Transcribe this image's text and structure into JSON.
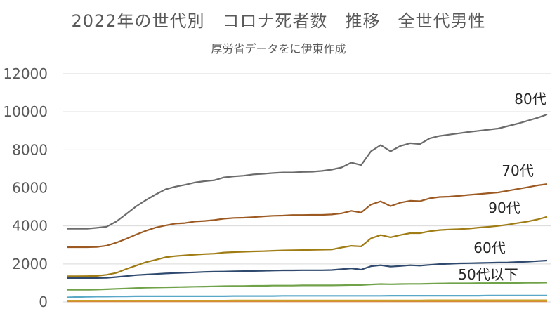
{
  "chart_data": {
    "type": "line",
    "title": "2022年の世代別　コロナ死者数　推移　全世代男性",
    "subtitle": "厚労省データをに伊東作成",
    "xlabel": "",
    "ylabel": "",
    "ylim": [
      0,
      12000
    ],
    "yticks": [
      "0",
      "2000",
      "4000",
      "6000",
      "8000",
      "10000",
      "12000"
    ],
    "grid": true,
    "x_count": 50,
    "colors": {
      "80代": "#6b6b6b",
      "70代": "#9c5a22",
      "90代": "#a07c14",
      "60代": "#2f4a6e",
      "50代以下": "#70a24a",
      "series_cyan": "#5aa8c8",
      "series_gold": "#c9a227",
      "series_orange": "#d9883a"
    },
    "series": [
      {
        "name": "80代",
        "values": [
          3850,
          3850,
          3850,
          3900,
          3960,
          4230,
          4620,
          5020,
          5350,
          5650,
          5920,
          6060,
          6160,
          6280,
          6350,
          6400,
          6550,
          6600,
          6640,
          6710,
          6740,
          6780,
          6810,
          6810,
          6840,
          6850,
          6890,
          6960,
          7070,
          7330,
          7200,
          7920,
          8250,
          7920,
          8200,
          8350,
          8300,
          8600,
          8730,
          8800,
          8870,
          8940,
          9000,
          9060,
          9120,
          9250,
          9380,
          9530,
          9680,
          9860
        ]
      },
      {
        "name": "70代",
        "values": [
          2880,
          2880,
          2880,
          2890,
          2960,
          3120,
          3320,
          3540,
          3740,
          3910,
          4020,
          4120,
          4150,
          4230,
          4260,
          4310,
          4380,
          4420,
          4430,
          4460,
          4500,
          4530,
          4540,
          4570,
          4570,
          4580,
          4580,
          4600,
          4660,
          4790,
          4700,
          5120,
          5290,
          5040,
          5220,
          5320,
          5300,
          5450,
          5520,
          5540,
          5580,
          5630,
          5670,
          5720,
          5760,
          5850,
          5940,
          6030,
          6130,
          6200
        ]
      },
      {
        "name": "90代",
        "values": [
          1350,
          1350,
          1360,
          1370,
          1430,
          1530,
          1730,
          1910,
          2090,
          2210,
          2350,
          2410,
          2450,
          2490,
          2520,
          2540,
          2600,
          2620,
          2640,
          2660,
          2670,
          2690,
          2710,
          2720,
          2730,
          2740,
          2750,
          2760,
          2860,
          2950,
          2920,
          3340,
          3520,
          3400,
          3520,
          3620,
          3620,
          3720,
          3780,
          3810,
          3830,
          3860,
          3910,
          3950,
          4000,
          4070,
          4150,
          4230,
          4340,
          4480
        ]
      },
      {
        "name": "60代",
        "values": [
          1260,
          1260,
          1260,
          1260,
          1270,
          1310,
          1360,
          1410,
          1440,
          1470,
          1500,
          1520,
          1540,
          1560,
          1580,
          1590,
          1600,
          1610,
          1620,
          1630,
          1640,
          1650,
          1660,
          1660,
          1670,
          1670,
          1670,
          1680,
          1720,
          1770,
          1700,
          1880,
          1930,
          1860,
          1890,
          1930,
          1910,
          1950,
          1990,
          2010,
          2030,
          2040,
          2050,
          2060,
          2070,
          2080,
          2100,
          2120,
          2150,
          2180
        ]
      },
      {
        "name": "50代以下",
        "values": [
          640,
          640,
          640,
          650,
          670,
          690,
          710,
          730,
          750,
          760,
          770,
          780,
          790,
          800,
          810,
          820,
          830,
          840,
          840,
          850,
          850,
          860,
          860,
          860,
          870,
          870,
          870,
          870,
          880,
          890,
          890,
          920,
          940,
          930,
          940,
          950,
          950,
          960,
          970,
          980,
          980,
          980,
          990,
          990,
          1000,
          1000,
          1000,
          1010,
          1010,
          1020
        ]
      },
      {
        "values": [
          240,
          260,
          270,
          280,
          280,
          290,
          290,
          300,
          300,
          300,
          300,
          300,
          300,
          300,
          300,
          300,
          300,
          310,
          310,
          310,
          310,
          310,
          320,
          320,
          320,
          320,
          320,
          320,
          320,
          320,
          320,
          320,
          320,
          330,
          330,
          330,
          330,
          330,
          330,
          330,
          330,
          330,
          330,
          340,
          340,
          340,
          340,
          340,
          340,
          340
        ]
      },
      {
        "values": [
          70,
          70,
          70,
          70,
          70,
          70,
          70,
          70,
          70,
          70,
          70,
          70,
          70,
          70,
          70,
          70,
          70,
          80,
          80,
          80,
          80,
          80,
          80,
          80,
          80,
          80,
          80,
          80,
          80,
          80,
          80,
          80,
          80,
          80,
          80,
          80,
          80,
          90,
          90,
          90,
          90,
          90,
          90,
          90,
          90,
          90,
          90,
          90,
          90,
          90
        ]
      },
      {
        "values": [
          30,
          30,
          30,
          30,
          30,
          30,
          30,
          30,
          30,
          30,
          30,
          30,
          30,
          30,
          30,
          30,
          30,
          30,
          30,
          30,
          30,
          30,
          30,
          30,
          30,
          30,
          30,
          30,
          30,
          30,
          30,
          30,
          30,
          30,
          30,
          30,
          30,
          30,
          30,
          30,
          30,
          30,
          30,
          30,
          30,
          30,
          30,
          30,
          30,
          30
        ]
      }
    ]
  }
}
